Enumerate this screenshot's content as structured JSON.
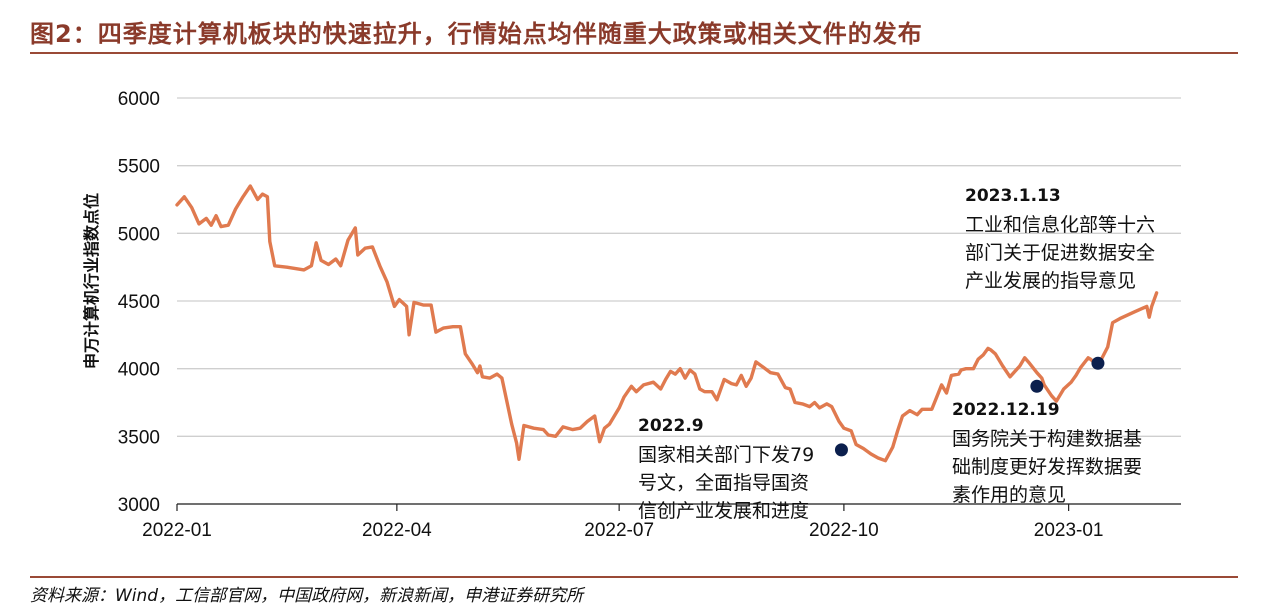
{
  "figure": {
    "title": "图2：四季度计算机板块的快速拉升，行情始点均伴随重大政策或相关文件的发布",
    "source": "资料来源：Wind，工信部官网，中国政府网，新浪新闻，申港证券研究所"
  },
  "chart_data": {
    "type": "line",
    "ylabel": "申万计算机行业指数点位",
    "ylim": [
      3000,
      6000
    ],
    "yticks": [
      3000,
      3500,
      4000,
      4500,
      5000,
      5500,
      6000
    ],
    "xlim": [
      "2022-01-01",
      "2023-02-16"
    ],
    "xticks": [
      "2022-01",
      "2022-04",
      "2022-07",
      "2022-10",
      "2023-01"
    ],
    "grid": "horizontal",
    "colors": {
      "line": "#e07a4f",
      "marker": "#0b1f4d",
      "grid": "#cfcfcf"
    },
    "series": [
      {
        "name": "",
        "points": [
          [
            "2022-01-01",
            5210
          ],
          [
            "2022-01-04",
            5270
          ],
          [
            "2022-01-07",
            5190
          ],
          [
            "2022-01-10",
            5070
          ],
          [
            "2022-01-13",
            5110
          ],
          [
            "2022-01-15",
            5060
          ],
          [
            "2022-01-17",
            5130
          ],
          [
            "2022-01-19",
            5050
          ],
          [
            "2022-01-22",
            5060
          ],
          [
            "2022-01-25",
            5180
          ],
          [
            "2022-01-28",
            5270
          ],
          [
            "2022-01-31",
            5350
          ],
          [
            "2022-02-03",
            5250
          ],
          [
            "2022-02-05",
            5290
          ],
          [
            "2022-02-07",
            5270
          ],
          [
            "2022-02-08",
            4940
          ],
          [
            "2022-02-10",
            4760
          ],
          [
            "2022-02-15",
            4750
          ],
          [
            "2022-02-22",
            4730
          ],
          [
            "2022-02-25",
            4760
          ],
          [
            "2022-02-27",
            4930
          ],
          [
            "2022-03-01",
            4800
          ],
          [
            "2022-03-04",
            4770
          ],
          [
            "2022-03-07",
            4810
          ],
          [
            "2022-03-09",
            4760
          ],
          [
            "2022-03-12",
            4950
          ],
          [
            "2022-03-15",
            5040
          ],
          [
            "2022-03-16",
            4840
          ],
          [
            "2022-03-19",
            4890
          ],
          [
            "2022-03-22",
            4900
          ],
          [
            "2022-03-25",
            4760
          ],
          [
            "2022-03-28",
            4640
          ],
          [
            "2022-03-31",
            4460
          ],
          [
            "2022-04-02",
            4510
          ],
          [
            "2022-04-05",
            4460
          ],
          [
            "2022-04-06",
            4250
          ],
          [
            "2022-04-08",
            4490
          ],
          [
            "2022-04-12",
            4470
          ],
          [
            "2022-04-15",
            4470
          ],
          [
            "2022-04-17",
            4270
          ],
          [
            "2022-04-20",
            4300
          ],
          [
            "2022-04-24",
            4310
          ],
          [
            "2022-04-27",
            4310
          ],
          [
            "2022-04-29",
            4110
          ],
          [
            "2022-05-02",
            4030
          ],
          [
            "2022-05-04",
            3970
          ],
          [
            "2022-05-05",
            4020
          ],
          [
            "2022-05-06",
            3940
          ],
          [
            "2022-05-09",
            3930
          ],
          [
            "2022-05-12",
            3960
          ],
          [
            "2022-05-14",
            3930
          ],
          [
            "2022-05-16",
            3760
          ],
          [
            "2022-05-18",
            3590
          ],
          [
            "2022-05-20",
            3450
          ],
          [
            "2022-05-21",
            3330
          ],
          [
            "2022-05-23",
            3580
          ],
          [
            "2022-05-27",
            3560
          ],
          [
            "2022-05-31",
            3550
          ],
          [
            "2022-06-02",
            3510
          ],
          [
            "2022-06-05",
            3500
          ],
          [
            "2022-06-08",
            3570
          ],
          [
            "2022-06-12",
            3550
          ],
          [
            "2022-06-15",
            3560
          ],
          [
            "2022-06-18",
            3610
          ],
          [
            "2022-06-21",
            3650
          ],
          [
            "2022-06-23",
            3460
          ],
          [
            "2022-06-25",
            3560
          ],
          [
            "2022-06-27",
            3590
          ],
          [
            "2022-07-01",
            3710
          ],
          [
            "2022-07-03",
            3790
          ],
          [
            "2022-07-06",
            3870
          ],
          [
            "2022-07-08",
            3830
          ],
          [
            "2022-07-11",
            3880
          ],
          [
            "2022-07-15",
            3900
          ],
          [
            "2022-07-18",
            3850
          ],
          [
            "2022-07-20",
            3920
          ],
          [
            "2022-07-22",
            3980
          ],
          [
            "2022-07-24",
            3960
          ],
          [
            "2022-07-26",
            4000
          ],
          [
            "2022-07-28",
            3930
          ],
          [
            "2022-07-30",
            3990
          ],
          [
            "2022-08-01",
            3960
          ],
          [
            "2022-08-03",
            3850
          ],
          [
            "2022-08-05",
            3830
          ],
          [
            "2022-08-08",
            3830
          ],
          [
            "2022-08-10",
            3770
          ],
          [
            "2022-08-13",
            3920
          ],
          [
            "2022-08-16",
            3890
          ],
          [
            "2022-08-18",
            3880
          ],
          [
            "2022-08-20",
            3950
          ],
          [
            "2022-08-22",
            3870
          ],
          [
            "2022-08-24",
            3930
          ],
          [
            "2022-08-26",
            4050
          ],
          [
            "2022-08-29",
            4010
          ],
          [
            "2022-09-01",
            3970
          ],
          [
            "2022-09-04",
            3960
          ],
          [
            "2022-09-07",
            3860
          ],
          [
            "2022-09-09",
            3850
          ],
          [
            "2022-09-11",
            3750
          ],
          [
            "2022-09-14",
            3740
          ],
          [
            "2022-09-17",
            3720
          ],
          [
            "2022-09-19",
            3750
          ],
          [
            "2022-09-21",
            3710
          ],
          [
            "2022-09-24",
            3740
          ],
          [
            "2022-09-26",
            3720
          ],
          [
            "2022-09-29",
            3610
          ],
          [
            "2022-10-01",
            3560
          ],
          [
            "2022-10-04",
            3540
          ],
          [
            "2022-10-06",
            3440
          ],
          [
            "2022-10-09",
            3410
          ],
          [
            "2022-10-12",
            3370
          ],
          [
            "2022-10-15",
            3340
          ],
          [
            "2022-10-18",
            3320
          ],
          [
            "2022-10-21",
            3420
          ],
          [
            "2022-10-23",
            3540
          ],
          [
            "2022-10-25",
            3650
          ],
          [
            "2022-10-28",
            3690
          ],
          [
            "2022-10-31",
            3660
          ],
          [
            "2022-11-02",
            3700
          ],
          [
            "2022-11-06",
            3700
          ],
          [
            "2022-11-08",
            3790
          ],
          [
            "2022-11-10",
            3880
          ],
          [
            "2022-11-12",
            3820
          ],
          [
            "2022-11-14",
            3950
          ],
          [
            "2022-11-17",
            3960
          ],
          [
            "2022-11-18",
            3990
          ],
          [
            "2022-11-20",
            4000
          ],
          [
            "2022-11-23",
            4000
          ],
          [
            "2022-11-25",
            4070
          ],
          [
            "2022-11-27",
            4100
          ],
          [
            "2022-11-29",
            4150
          ],
          [
            "2022-11-30",
            4140
          ],
          [
            "2022-12-02",
            4110
          ],
          [
            "2022-12-05",
            4020
          ],
          [
            "2022-12-08",
            3940
          ],
          [
            "2022-12-12",
            4020
          ],
          [
            "2022-12-14",
            4080
          ],
          [
            "2022-12-16",
            4040
          ],
          [
            "2022-12-19",
            3970
          ],
          [
            "2022-12-21",
            3930
          ],
          [
            "2022-12-22",
            3880
          ],
          [
            "2022-12-25",
            3800
          ],
          [
            "2022-12-27",
            3760
          ],
          [
            "2022-12-30",
            3850
          ],
          [
            "2023-01-02",
            3900
          ],
          [
            "2023-01-04",
            3950
          ],
          [
            "2023-01-06",
            4010
          ],
          [
            "2023-01-09",
            4080
          ],
          [
            "2023-01-10",
            4070
          ],
          [
            "2023-01-13",
            4020
          ],
          [
            "2023-01-15",
            4090
          ],
          [
            "2023-01-17",
            4160
          ],
          [
            "2023-01-19",
            4340
          ],
          [
            "2023-01-22",
            4370
          ],
          [
            "2023-01-28",
            4420
          ],
          [
            "2023-02-02",
            4460
          ],
          [
            "2023-02-03",
            4380
          ],
          [
            "2023-02-04",
            4460
          ],
          [
            "2023-02-06",
            4560
          ]
        ]
      }
    ],
    "annotations": [
      {
        "date": "2022-09-30",
        "y": 3400,
        "label_date": "2022.9",
        "lines": [
          "国家相关部门下发79",
          "号文，全面指导国资",
          "信创产业发展和进度"
        ]
      },
      {
        "date": "2022-12-19",
        "y": 3870,
        "label_date": "2022.12.19",
        "lines": [
          "国务院关于构建数据基",
          "础制度更好发挥数据要",
          "素作用的意见"
        ]
      },
      {
        "date": "2023-01-13",
        "y": 4040,
        "label_date": "2023.1.13",
        "lines": [
          "工业和信息化部等十六",
          "部门关于促进数据安全",
          "产业发展的指导意见"
        ]
      }
    ]
  }
}
